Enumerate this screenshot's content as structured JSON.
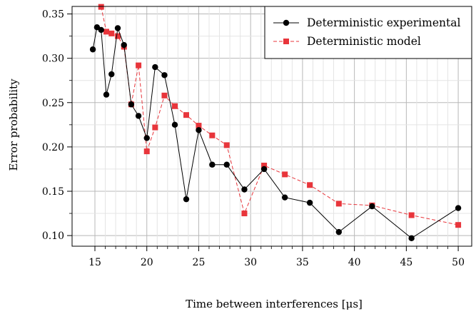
{
  "chart_data": {
    "type": "line",
    "title": "",
    "xlabel": "Time between interferences [μs]",
    "ylabel": "Error probability",
    "xlim": [
      12.8,
      51.3
    ],
    "ylim": [
      0.088,
      0.3585
    ],
    "x_ticks": [
      15,
      20,
      25,
      30,
      35,
      40,
      45,
      50
    ],
    "y_ticks": [
      0.1,
      0.15,
      0.2,
      0.25,
      0.3,
      0.35
    ],
    "x_minor_ticks": [
      16,
      17,
      18,
      19,
      21,
      22,
      23,
      24,
      26,
      27,
      28,
      29,
      31,
      32,
      33,
      34,
      36,
      37,
      38,
      39,
      41,
      42,
      43,
      44,
      46,
      47,
      48,
      49
    ],
    "y_minor_ticks": [
      0.125,
      0.175,
      0.225,
      0.275,
      0.325
    ],
    "grid": true,
    "legend_position": "top-right",
    "series": [
      {
        "name": "Deterministic experimental",
        "color": "#000000",
        "marker": "circle",
        "linestyle": "solid",
        "points": [
          [
            14.8,
            0.31
          ],
          [
            15.2,
            0.335
          ],
          [
            15.6,
            0.332
          ],
          [
            16.1,
            0.259
          ],
          [
            16.6,
            0.282
          ],
          [
            17.2,
            0.334
          ],
          [
            17.8,
            0.315
          ],
          [
            18.5,
            0.248
          ],
          [
            19.2,
            0.235
          ],
          [
            20.0,
            0.21
          ],
          [
            20.8,
            0.29
          ],
          [
            21.7,
            0.281
          ],
          [
            22.7,
            0.225
          ],
          [
            23.8,
            0.141
          ],
          [
            25.0,
            0.219
          ],
          [
            26.3,
            0.18
          ],
          [
            27.7,
            0.18
          ],
          [
            29.4,
            0.152
          ],
          [
            31.3,
            0.175
          ],
          [
            33.3,
            0.143
          ],
          [
            35.7,
            0.137
          ],
          [
            38.5,
            0.104
          ],
          [
            41.7,
            0.133
          ],
          [
            45.5,
            0.097
          ],
          [
            50.0,
            0.131
          ]
        ]
      },
      {
        "name": "Deterministic model",
        "color": "#e8353b",
        "marker": "square",
        "linestyle": "dashed",
        "points": [
          [
            15.6,
            0.358
          ],
          [
            16.1,
            0.33
          ],
          [
            16.6,
            0.328
          ],
          [
            17.2,
            0.325
          ],
          [
            17.8,
            0.313
          ],
          [
            18.5,
            0.248
          ],
          [
            19.2,
            0.292
          ],
          [
            20.0,
            0.195
          ],
          [
            20.8,
            0.222
          ],
          [
            21.7,
            0.258
          ],
          [
            22.7,
            0.246
          ],
          [
            23.8,
            0.236
          ],
          [
            25.0,
            0.224
          ],
          [
            26.3,
            0.213
          ],
          [
            27.7,
            0.202
          ],
          [
            29.4,
            0.125
          ],
          [
            31.3,
            0.179
          ],
          [
            33.3,
            0.169
          ],
          [
            35.7,
            0.157
          ],
          [
            38.5,
            0.136
          ],
          [
            41.7,
            0.134
          ],
          [
            45.5,
            0.123
          ],
          [
            50.0,
            0.112
          ]
        ]
      }
    ]
  }
}
